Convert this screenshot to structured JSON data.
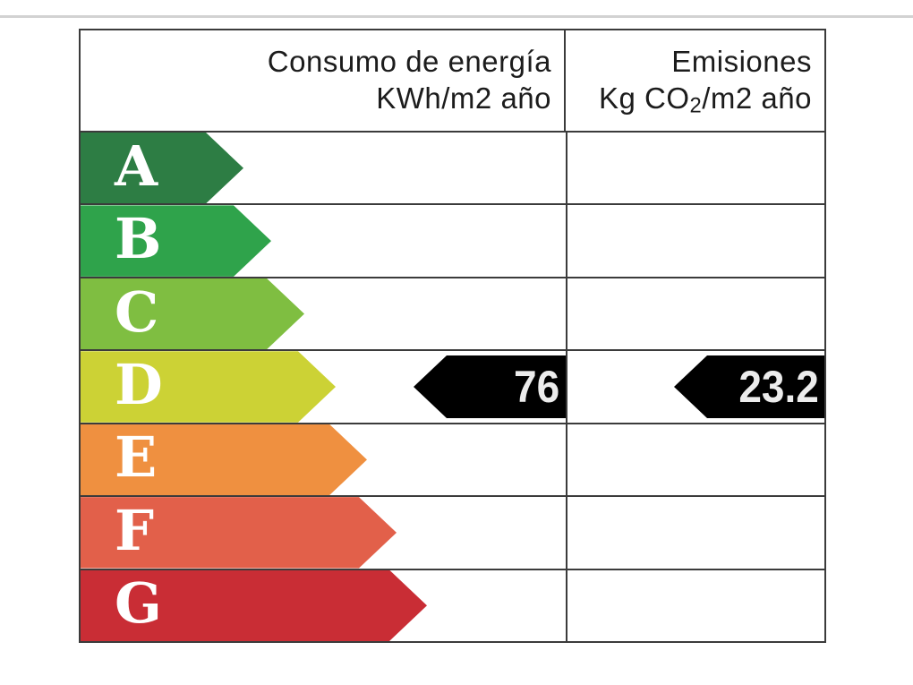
{
  "page": {
    "background": "#ffffff",
    "top_band_color": "#d2d2d2",
    "border_color": "#3b3b3b"
  },
  "header": {
    "consumption": {
      "line1": "Consumo de energía",
      "line2": "KWh/m2 año"
    },
    "emissions": {
      "line1": "Emisiones",
      "line2_prefix": "Kg CO",
      "line2_sub": "2",
      "line2_suffix": "/m2 año"
    }
  },
  "scale": {
    "rows": [
      {
        "grade": "A",
        "color": "#2d7d44",
        "arrow_width": 182
      },
      {
        "grade": "B",
        "color": "#2fa34b",
        "arrow_width": 213
      },
      {
        "grade": "C",
        "color": "#7fbe41",
        "arrow_width": 250
      },
      {
        "grade": "D",
        "color": "#ccd235",
        "arrow_width": 285
      },
      {
        "grade": "E",
        "color": "#ef9040",
        "arrow_width": 320
      },
      {
        "grade": "F",
        "color": "#e2604a",
        "arrow_width": 353
      },
      {
        "grade": "G",
        "color": "#c92d35",
        "arrow_width": 387
      }
    ]
  },
  "rating": {
    "grade": "D",
    "consumption_value": "76",
    "emissions_value": "23.2",
    "marker_color": "#000000",
    "marker_text_color": "#ececec"
  },
  "chart_data": {
    "type": "bar",
    "title": "Spanish energy efficiency certificate rating scale",
    "orientation": "horizontal",
    "categories": [
      "A",
      "B",
      "C",
      "D",
      "E",
      "F",
      "G"
    ],
    "series": [
      {
        "name": "scale_arrow_relative_length_px",
        "values": [
          182,
          213,
          250,
          285,
          320,
          353,
          387
        ]
      }
    ],
    "bar_colors": [
      "#2d7d44",
      "#2fa34b",
      "#7fbe41",
      "#ccd235",
      "#ef9040",
      "#e2604a",
      "#c92d35"
    ],
    "columns": [
      {
        "header": "Consumo de energía KWh/m2 año",
        "rated_grade": "D",
        "value": 76
      },
      {
        "header": "Emisiones Kg CO2/m2 año",
        "rated_grade": "D",
        "value": 23.2
      }
    ],
    "legend_position": "none",
    "grid": false
  }
}
